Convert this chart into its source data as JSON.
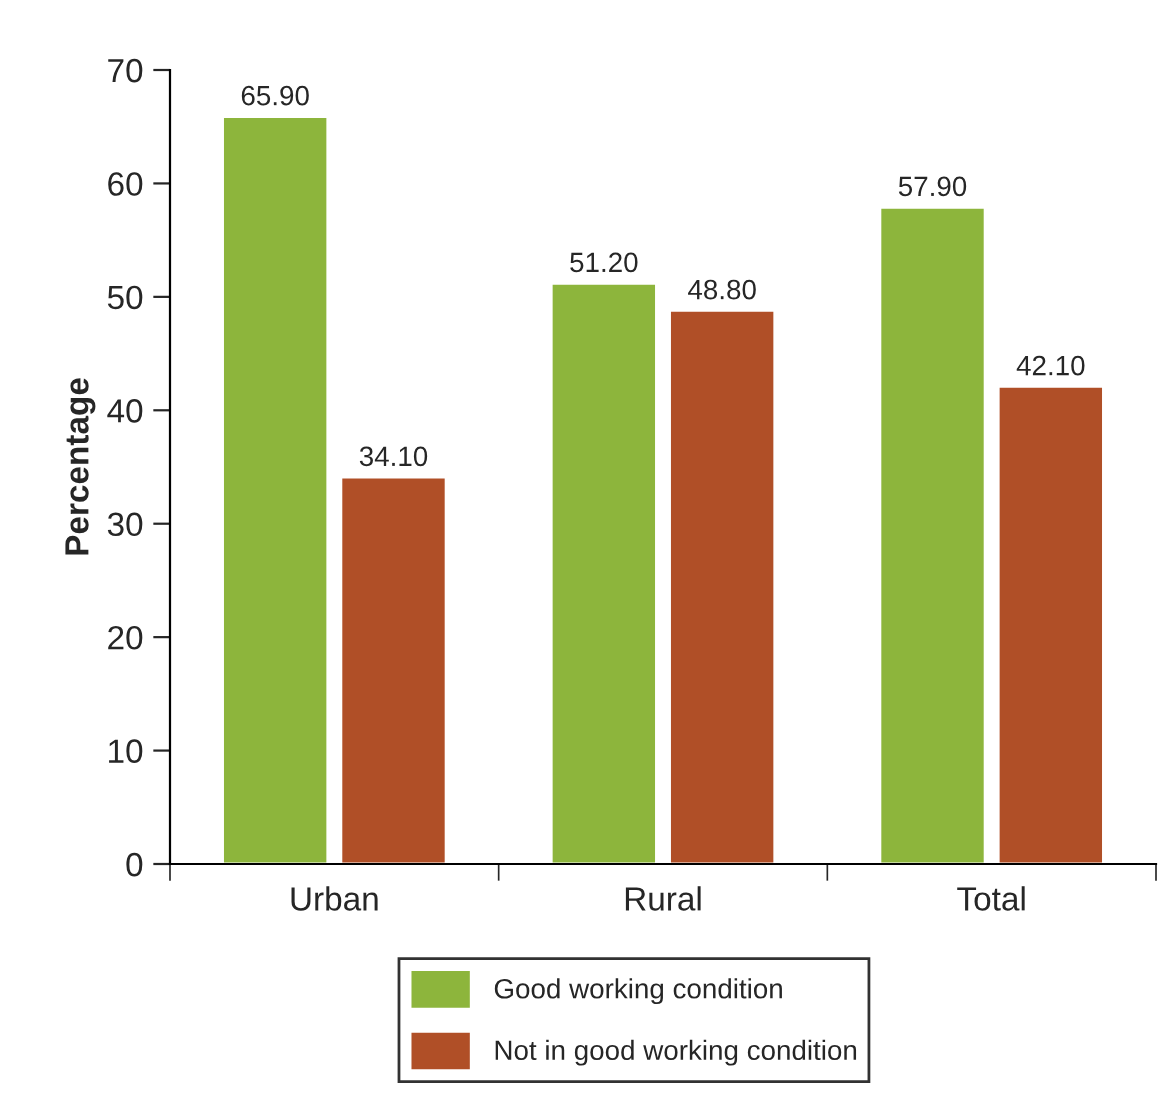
{
  "chart_data": {
    "type": "bar",
    "ylabel": "Percentage",
    "categories": [
      "Urban",
      "Rural",
      "Total"
    ],
    "series": [
      {
        "name": "Good working condition",
        "color": "#8db53c",
        "values": [
          65.9,
          51.2,
          57.9
        ],
        "value_labels": [
          "65.90",
          "51.20",
          "57.90"
        ]
      },
      {
        "name": "Not in good working condition",
        "color": "#b04f27",
        "values": [
          34.1,
          48.8,
          42.1
        ],
        "value_labels": [
          "34.10",
          "48.80",
          "42.10"
        ]
      }
    ],
    "ylim": [
      0,
      70
    ],
    "yticks": [
      0,
      10,
      20,
      30,
      40,
      50,
      60,
      70
    ],
    "grid": false,
    "legend": "bottom"
  }
}
